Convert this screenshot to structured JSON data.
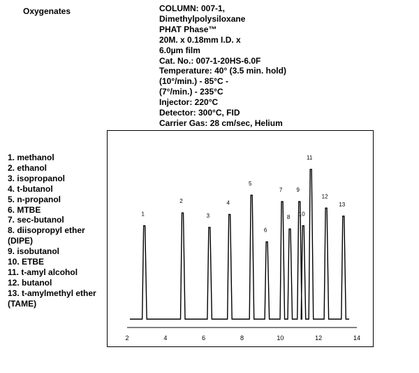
{
  "title": "Oxygenates",
  "specs": [
    "COLUMN: 007-1,",
    "Dimethylpolysiloxane",
    "PHAT Phase™",
    "20M. x 0.18mm I.D. x",
    "6.0µm film",
    "Cat. No.: 007-1-20HS-6.0F",
    "Temperature: 40° (3.5 min. hold)",
    "(10°/min.) - 85°C -",
    "(7°/min.) - 235°C",
    "Injector: 220°C",
    "Detector: 300°C, FID",
    "Carrier Gas: 28 cm/sec, Helium"
  ],
  "legend": [
    "1. methanol",
    "2. ethanol",
    "3. isopropanol",
    "4. t-butanol",
    "5. n-propanol",
    "6. MTBE",
    "7. sec-butanol",
    "8. diisopropyl ether",
    "(DIPE)",
    "9. isobutanol",
    "10. ETBE",
    "11. t-amyl alcohol",
    "12. butanol",
    "13. t-amylmethyl ether",
    "(TAME)"
  ],
  "chart_data": {
    "type": "line",
    "xlim": [
      2,
      14
    ],
    "x_ticks": [
      2,
      4,
      6,
      8,
      10,
      12,
      14
    ],
    "y_relative_range": [
      0,
      1
    ],
    "peaks": [
      {
        "label": "1",
        "x": 2.9,
        "height": 0.58
      },
      {
        "label": "2",
        "x": 4.9,
        "height": 0.66
      },
      {
        "label": "3",
        "x": 6.3,
        "height": 0.57
      },
      {
        "label": "4",
        "x": 7.35,
        "height": 0.65
      },
      {
        "label": "5",
        "x": 8.5,
        "height": 0.77
      },
      {
        "label": "6",
        "x": 9.3,
        "height": 0.48
      },
      {
        "label": "7",
        "x": 10.1,
        "height": 0.73
      },
      {
        "label": "8",
        "x": 10.5,
        "height": 0.56
      },
      {
        "label": "9",
        "x": 11.0,
        "height": 0.73
      },
      {
        "label": "10",
        "x": 11.2,
        "height": 0.58
      },
      {
        "label": "11",
        "x": 11.6,
        "height": 0.93
      },
      {
        "label": "12",
        "x": 12.4,
        "height": 0.69
      },
      {
        "label": "13",
        "x": 13.3,
        "height": 0.64
      }
    ],
    "grid": false
  }
}
